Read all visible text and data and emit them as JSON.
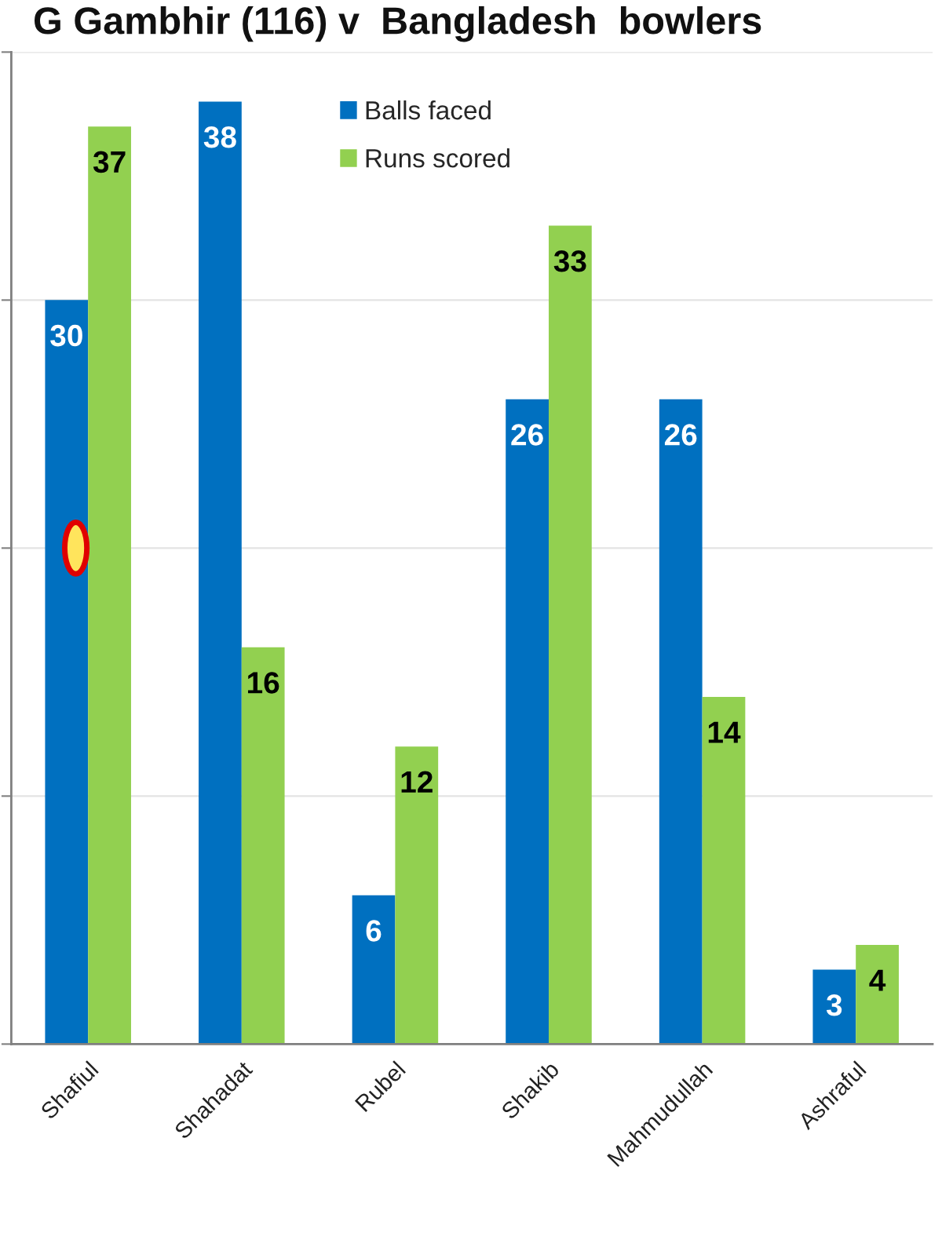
{
  "chart_data": {
    "type": "bar",
    "title": "G Gambhir (116) v  Bangladesh  bowlers",
    "categories": [
      "Shafiul",
      "Shahadat",
      "Rubel",
      "Shakib",
      "Mahmudullah",
      "Ashraful"
    ],
    "series": [
      {
        "name": "Balls faced",
        "color": "#0070c0",
        "values": [
          30,
          38,
          6,
          26,
          26,
          3
        ]
      },
      {
        "name": "Runs scored",
        "color": "#92d050",
        "values": [
          37,
          16,
          12,
          33,
          14,
          4
        ]
      }
    ],
    "ylim": [
      0,
      40
    ],
    "yticks": [
      0,
      10,
      20,
      30,
      40
    ],
    "tick_labels": "x",
    "grid": "y",
    "legend": "top",
    "data_labels": true
  }
}
